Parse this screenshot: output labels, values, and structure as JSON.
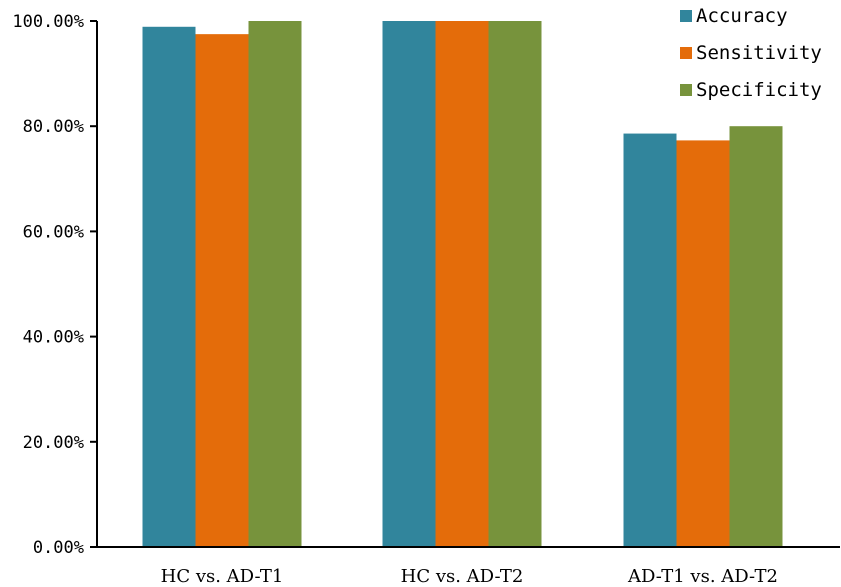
{
  "chart_data": {
    "type": "bar",
    "categories": [
      "HC vs. AD-T1",
      "HC vs. AD-T2",
      "AD-T1 vs. AD-T2"
    ],
    "series": [
      {
        "name": "Accuracy",
        "color": "#31859c",
        "values": [
          98.9,
          100.0,
          78.6
        ]
      },
      {
        "name": "Sensitivity",
        "color": "#e46c0a",
        "values": [
          97.5,
          100.0,
          77.3
        ]
      },
      {
        "name": "Specificity",
        "color": "#77933c",
        "values": [
          100.0,
          100.0,
          80.0
        ]
      }
    ],
    "ylim": [
      0,
      100
    ],
    "yticks": [
      0,
      20,
      40,
      60,
      80,
      100
    ],
    "ytick_labels": [
      "0.00%",
      "20.00%",
      "40.00%",
      "60.00%",
      "80.00%",
      "100.00%"
    ],
    "title": "",
    "xlabel": "",
    "ylabel": "",
    "legend_position": "top-right",
    "grid": false
  }
}
